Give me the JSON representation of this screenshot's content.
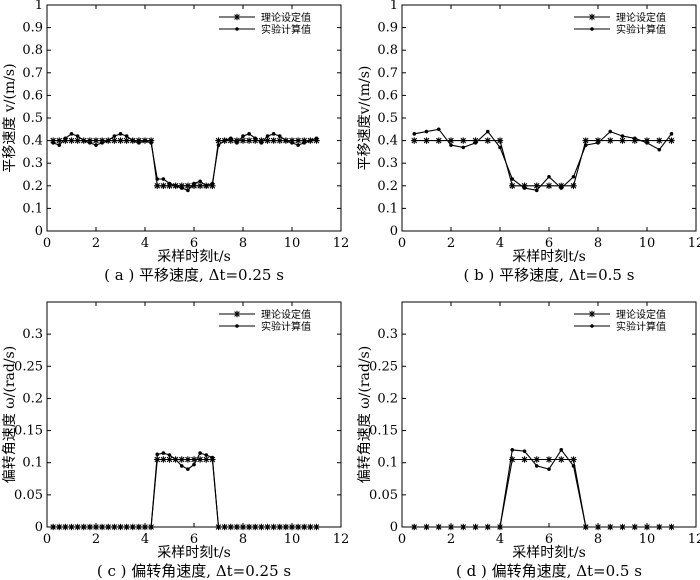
{
  "chart_data": [
    {
      "type": "line",
      "caption": "( a ) 平移速度, Δt=0.25 s",
      "xlabel": "采样时刻t/s",
      "ylabel": "平移速度 v/(m/s)",
      "xlim": [
        0,
        12
      ],
      "ylim": [
        0,
        1
      ],
      "xticks": [
        0,
        2,
        4,
        6,
        8,
        10,
        12
      ],
      "yticks": [
        0,
        0.1,
        0.2,
        0.3,
        0.4,
        0.5,
        0.6,
        0.7,
        0.8,
        0.9,
        1
      ],
      "ytick_labels": [
        "0",
        "0.1",
        "0.2",
        "0.3",
        "0.4",
        "0.5",
        "0.6",
        "0.7",
        "0.8",
        "0.9",
        "1"
      ],
      "legend_position": "top-right",
      "series": [
        {
          "name": "理论设定值",
          "marker": "star",
          "x": [
            0.25,
            0.5,
            0.75,
            1,
            1.25,
            1.5,
            1.75,
            2,
            2.25,
            2.5,
            2.75,
            3,
            3.25,
            3.5,
            3.75,
            4,
            4.25,
            4.5,
            4.75,
            5,
            5.25,
            5.5,
            5.75,
            6,
            6.25,
            6.5,
            6.75,
            7,
            7.25,
            7.5,
            7.75,
            8,
            8.25,
            8.5,
            8.75,
            9,
            9.25,
            9.5,
            9.75,
            10,
            10.25,
            10.5,
            10.75,
            11
          ],
          "y": [
            0.4,
            0.4,
            0.4,
            0.4,
            0.4,
            0.4,
            0.4,
            0.4,
            0.4,
            0.4,
            0.4,
            0.4,
            0.4,
            0.4,
            0.4,
            0.4,
            0.4,
            0.2,
            0.2,
            0.2,
            0.2,
            0.2,
            0.2,
            0.2,
            0.2,
            0.2,
            0.2,
            0.4,
            0.4,
            0.4,
            0.4,
            0.4,
            0.4,
            0.4,
            0.4,
            0.4,
            0.4,
            0.4,
            0.4,
            0.4,
            0.4,
            0.4,
            0.4,
            0.4
          ]
        },
        {
          "name": "实验计算值",
          "marker": "dot",
          "x": [
            0.25,
            0.5,
            0.75,
            1,
            1.25,
            1.5,
            1.75,
            2,
            2.25,
            2.5,
            2.75,
            3,
            3.25,
            3.5,
            3.75,
            4,
            4.25,
            4.5,
            4.75,
            5,
            5.25,
            5.5,
            5.75,
            6,
            6.25,
            6.5,
            6.75,
            7,
            7.25,
            7.5,
            7.75,
            8,
            8.25,
            8.5,
            8.75,
            9,
            9.25,
            9.5,
            9.75,
            10,
            10.25,
            10.5,
            10.75,
            11
          ],
          "y": [
            0.39,
            0.38,
            0.41,
            0.43,
            0.42,
            0.4,
            0.39,
            0.38,
            0.39,
            0.4,
            0.42,
            0.43,
            0.42,
            0.4,
            0.39,
            0.4,
            0.39,
            0.23,
            0.23,
            0.21,
            0.2,
            0.19,
            0.18,
            0.21,
            0.22,
            0.2,
            0.21,
            0.38,
            0.4,
            0.41,
            0.39,
            0.42,
            0.43,
            0.41,
            0.39,
            0.42,
            0.43,
            0.42,
            0.4,
            0.39,
            0.38,
            0.39,
            0.4,
            0.41
          ]
        }
      ]
    },
    {
      "type": "line",
      "caption": "( b ) 平移速度, Δt=0.5 s",
      "xlabel": "采样时刻t/s",
      "ylabel": "平移速度v/(m/s)",
      "xlim": [
        0,
        12
      ],
      "ylim": [
        0,
        1
      ],
      "xticks": [
        0,
        2,
        4,
        6,
        8,
        10,
        12
      ],
      "yticks": [
        0,
        0.1,
        0.2,
        0.3,
        0.4,
        0.5,
        0.6,
        0.7,
        0.8,
        0.9,
        1
      ],
      "ytick_labels": [
        "0",
        "0.1",
        "0.2",
        "0.3",
        "0.4",
        "0.5",
        "0.6",
        "0.7",
        "0.8",
        "0.9",
        "1"
      ],
      "legend_position": "top-right",
      "series": [
        {
          "name": "理论设定值",
          "marker": "star",
          "x": [
            0.5,
            1,
            1.5,
            2,
            2.5,
            3,
            3.5,
            4,
            4.5,
            5,
            5.5,
            6,
            6.5,
            7,
            7.5,
            8,
            8.5,
            9,
            9.5,
            10,
            10.5,
            11
          ],
          "y": [
            0.4,
            0.4,
            0.4,
            0.4,
            0.4,
            0.4,
            0.4,
            0.4,
            0.2,
            0.2,
            0.2,
            0.2,
            0.2,
            0.2,
            0.4,
            0.4,
            0.4,
            0.4,
            0.4,
            0.4,
            0.4,
            0.4
          ]
        },
        {
          "name": "实验计算值",
          "marker": "dot",
          "x": [
            0.5,
            1,
            1.5,
            2,
            2.5,
            3,
            3.5,
            4,
            4.5,
            5,
            5.5,
            6,
            6.5,
            7,
            7.5,
            8,
            8.5,
            9,
            9.5,
            10,
            10.5,
            11
          ],
          "y": [
            0.43,
            0.44,
            0.45,
            0.38,
            0.37,
            0.39,
            0.44,
            0.37,
            0.23,
            0.19,
            0.18,
            0.24,
            0.19,
            0.24,
            0.38,
            0.39,
            0.44,
            0.42,
            0.41,
            0.39,
            0.36,
            0.43
          ]
        }
      ]
    },
    {
      "type": "line",
      "caption": "( c ) 偏转角速度, Δt=0.25 s",
      "xlabel": "采样时刻t/s",
      "ylabel": "偏转角速度 ω/(rad/s)",
      "xlim": [
        0,
        12
      ],
      "ylim": [
        0,
        0.35
      ],
      "xticks": [
        0,
        2,
        4,
        6,
        8,
        10,
        12
      ],
      "yticks": [
        0,
        0.05,
        0.1,
        0.15,
        0.2,
        0.25,
        0.3
      ],
      "ytick_labels": [
        "0",
        "0.05",
        "0.1",
        "0.15",
        "0.2",
        "0.25",
        "0.3"
      ],
      "legend_position": "top-right",
      "series": [
        {
          "name": "理论设定值",
          "marker": "star",
          "x": [
            0.25,
            0.5,
            0.75,
            1,
            1.25,
            1.5,
            1.75,
            2,
            2.25,
            2.5,
            2.75,
            3,
            3.25,
            3.5,
            3.75,
            4,
            4.25,
            4.5,
            4.75,
            5,
            5.25,
            5.5,
            5.75,
            6,
            6.25,
            6.5,
            6.75,
            7,
            7.25,
            7.5,
            7.75,
            8,
            8.25,
            8.5,
            8.75,
            9,
            9.25,
            9.5,
            9.75,
            10,
            10.25,
            10.5,
            10.75,
            11
          ],
          "y": [
            0,
            0,
            0,
            0,
            0,
            0,
            0,
            0,
            0,
            0,
            0,
            0,
            0,
            0,
            0,
            0,
            0,
            0.105,
            0.105,
            0.105,
            0.105,
            0.105,
            0.105,
            0.105,
            0.105,
            0.105,
            0.105,
            0,
            0,
            0,
            0,
            0,
            0,
            0,
            0,
            0,
            0,
            0,
            0,
            0,
            0,
            0,
            0,
            0
          ]
        },
        {
          "name": "实验计算值",
          "marker": "dot",
          "x": [
            0.25,
            0.5,
            0.75,
            1,
            1.25,
            1.5,
            1.75,
            2,
            2.25,
            2.5,
            2.75,
            3,
            3.25,
            3.5,
            3.75,
            4,
            4.25,
            4.5,
            4.75,
            5,
            5.25,
            5.5,
            5.75,
            6,
            6.25,
            6.5,
            6.75,
            7,
            7.25,
            7.5,
            7.75,
            8,
            8.25,
            8.5,
            8.75,
            9,
            9.25,
            9.5,
            9.75,
            10,
            10.25,
            10.5,
            10.75,
            11
          ],
          "y": [
            0,
            0,
            0,
            0,
            0,
            0,
            0,
            0,
            0,
            0,
            0,
            0,
            0,
            0,
            0,
            0,
            0,
            0.113,
            0.115,
            0.112,
            0.105,
            0.095,
            0.09,
            0.097,
            0.115,
            0.112,
            0.108,
            0,
            0,
            0,
            0,
            0,
            0,
            0,
            0,
            0,
            0,
            0,
            0,
            0,
            0,
            0,
            0,
            0
          ]
        }
      ]
    },
    {
      "type": "line",
      "caption": "( d ) 偏转角速度, Δt=0.5 s",
      "xlabel": "采样时刻t/s",
      "ylabel": "偏转角速度 ω/(rad/s)",
      "xlim": [
        0,
        12
      ],
      "ylim": [
        0,
        0.35
      ],
      "xticks": [
        0,
        2,
        4,
        6,
        8,
        10,
        12
      ],
      "yticks": [
        0,
        0.05,
        0.1,
        0.15,
        0.2,
        0.25,
        0.3
      ],
      "ytick_labels": [
        "0",
        "0.05",
        "0.1",
        "0.15",
        "0.2",
        "0.25",
        "0.3"
      ],
      "legend_position": "top-right",
      "series": [
        {
          "name": "理论设定值",
          "marker": "star",
          "x": [
            0.5,
            1,
            1.5,
            2,
            2.5,
            3,
            3.5,
            4,
            4.5,
            5,
            5.5,
            6,
            6.5,
            7,
            7.5,
            8,
            8.5,
            9,
            9.5,
            10,
            10.5,
            11
          ],
          "y": [
            0,
            0,
            0,
            0,
            0,
            0,
            0,
            0,
            0.105,
            0.105,
            0.105,
            0.105,
            0.105,
            0.105,
            0,
            0,
            0,
            0,
            0,
            0,
            0,
            0
          ]
        },
        {
          "name": "实验计算值",
          "marker": "dot",
          "x": [
            0.5,
            1,
            1.5,
            2,
            2.5,
            3,
            3.5,
            4,
            4.5,
            5,
            5.5,
            6,
            6.5,
            7,
            7.5,
            8,
            8.5,
            9,
            9.5,
            10,
            10.5,
            11
          ],
          "y": [
            0,
            0,
            0,
            0,
            0,
            0,
            0,
            0,
            0.12,
            0.118,
            0.095,
            0.09,
            0.12,
            0.095,
            0,
            0,
            0,
            0,
            0,
            0,
            0,
            0
          ]
        }
      ]
    }
  ]
}
